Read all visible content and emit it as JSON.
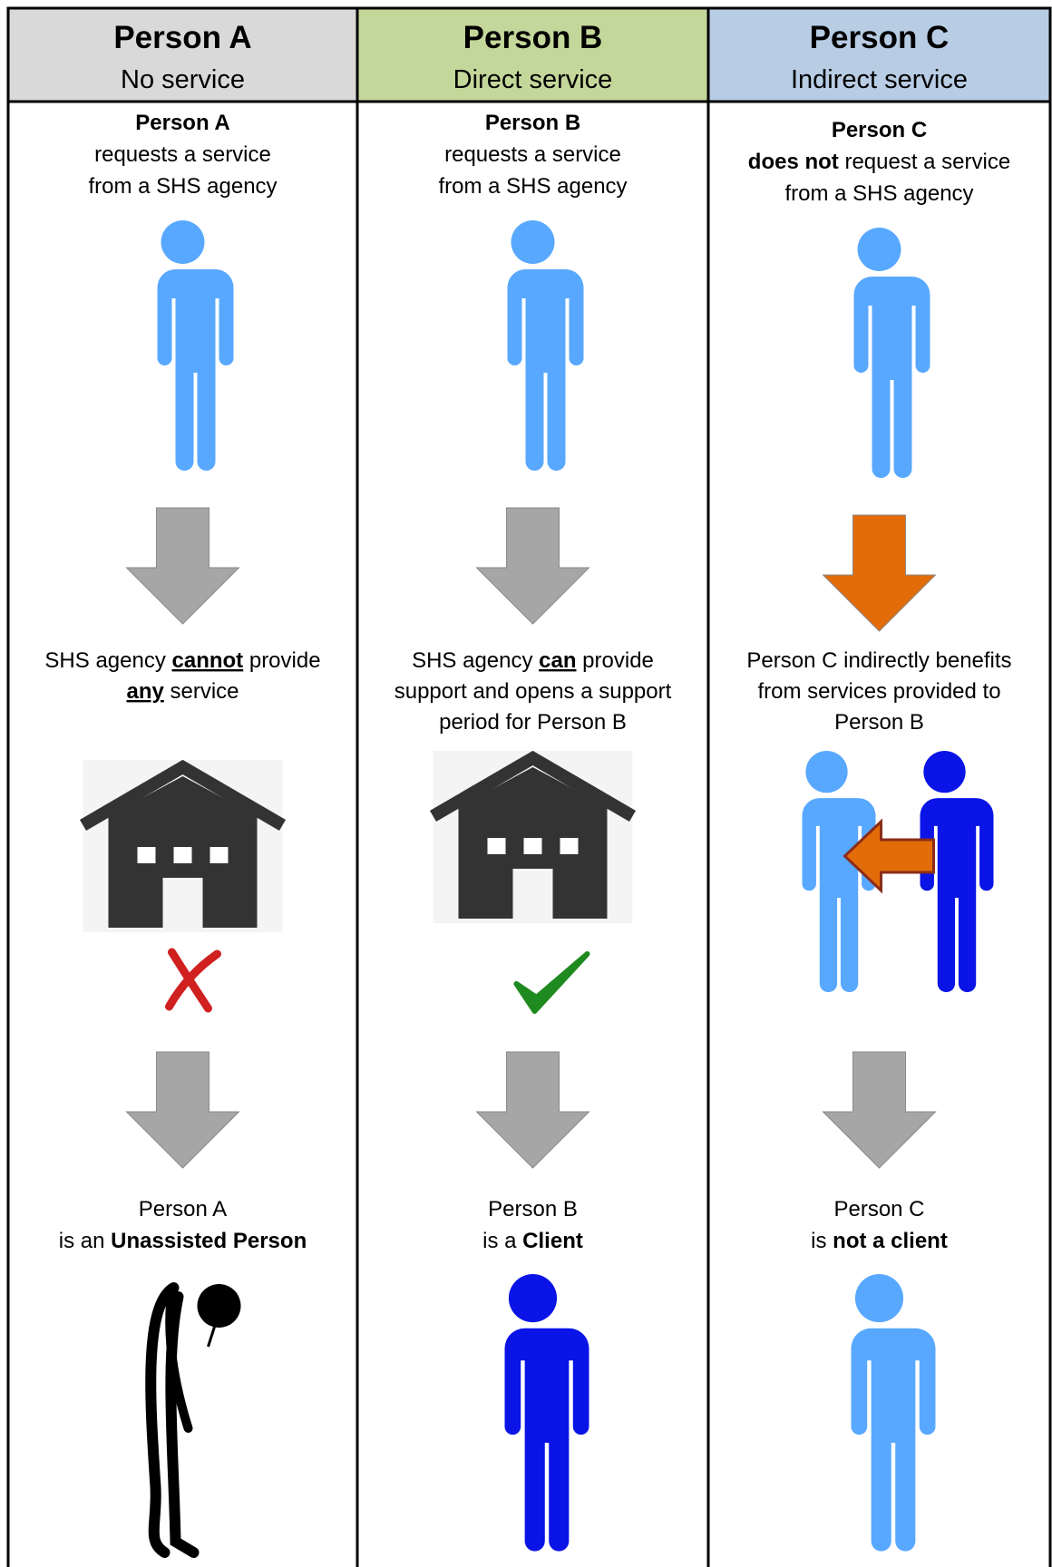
{
  "columns": [
    {
      "title": "Person A",
      "subtitle": "No service",
      "header_color": "#d9d9d9",
      "request": [
        [
          {
            "text": "Person A",
            "style": "bold"
          }
        ],
        [
          {
            "text": "requests a service",
            "style": "normal"
          }
        ],
        [
          {
            "text": "from a SHS agency",
            "style": "normal"
          }
        ]
      ],
      "outcome": [
        [
          {
            "text": "SHS agency ",
            "style": "normal"
          },
          {
            "text": "cannot",
            "style": "bold-underline"
          },
          {
            "text": " provide",
            "style": "normal"
          }
        ],
        [
          {
            "text": "any",
            "style": "bold-underline"
          },
          {
            "text": " service",
            "style": "normal"
          }
        ]
      ],
      "result": [
        [
          {
            "text": "Person A",
            "style": "normal"
          }
        ],
        [
          {
            "text": "is an ",
            "style": "normal"
          },
          {
            "text": "Unassisted Person",
            "style": "bold"
          }
        ]
      ]
    },
    {
      "title": "Person B",
      "subtitle": "Direct service",
      "header_color": "#c4d79b",
      "request": [
        [
          {
            "text": "Person B",
            "style": "bold"
          }
        ],
        [
          {
            "text": "requests a service",
            "style": "normal"
          }
        ],
        [
          {
            "text": "from a SHS agency",
            "style": "normal"
          }
        ]
      ],
      "outcome": [
        [
          {
            "text": "SHS agency ",
            "style": "normal"
          },
          {
            "text": "can",
            "style": "bold-underline"
          },
          {
            "text": " provide",
            "style": "normal"
          }
        ],
        [
          {
            "text": "support and opens a support",
            "style": "normal"
          }
        ],
        [
          {
            "text": "period for Person B",
            "style": "normal"
          }
        ]
      ],
      "result": [
        [
          {
            "text": "Person B",
            "style": "normal"
          }
        ],
        [
          {
            "text": "is a ",
            "style": "normal"
          },
          {
            "text": "Client",
            "style": "bold"
          }
        ]
      ]
    },
    {
      "title": "Person C",
      "subtitle": "Indirect service",
      "header_color": "#b8cce4",
      "request": [
        [
          {
            "text": "Person C",
            "style": "bold"
          }
        ],
        [
          {
            "text": "does not",
            "style": "bold"
          },
          {
            "text": " request a service",
            "style": "normal"
          }
        ],
        [
          {
            "text": "from a SHS agency",
            "style": "normal"
          }
        ]
      ],
      "outcome": [
        [
          {
            "text": "Person C indirectly benefits",
            "style": "normal"
          }
        ],
        [
          {
            "text": "from services provided to",
            "style": "normal"
          }
        ],
        [
          {
            "text": "Person B",
            "style": "normal"
          }
        ]
      ],
      "result": [
        [
          {
            "text": "Person C",
            "style": "normal"
          }
        ],
        [
          {
            "text": "is ",
            "style": "normal"
          },
          {
            "text": "not a client",
            "style": "bold"
          }
        ]
      ]
    }
  ]
}
